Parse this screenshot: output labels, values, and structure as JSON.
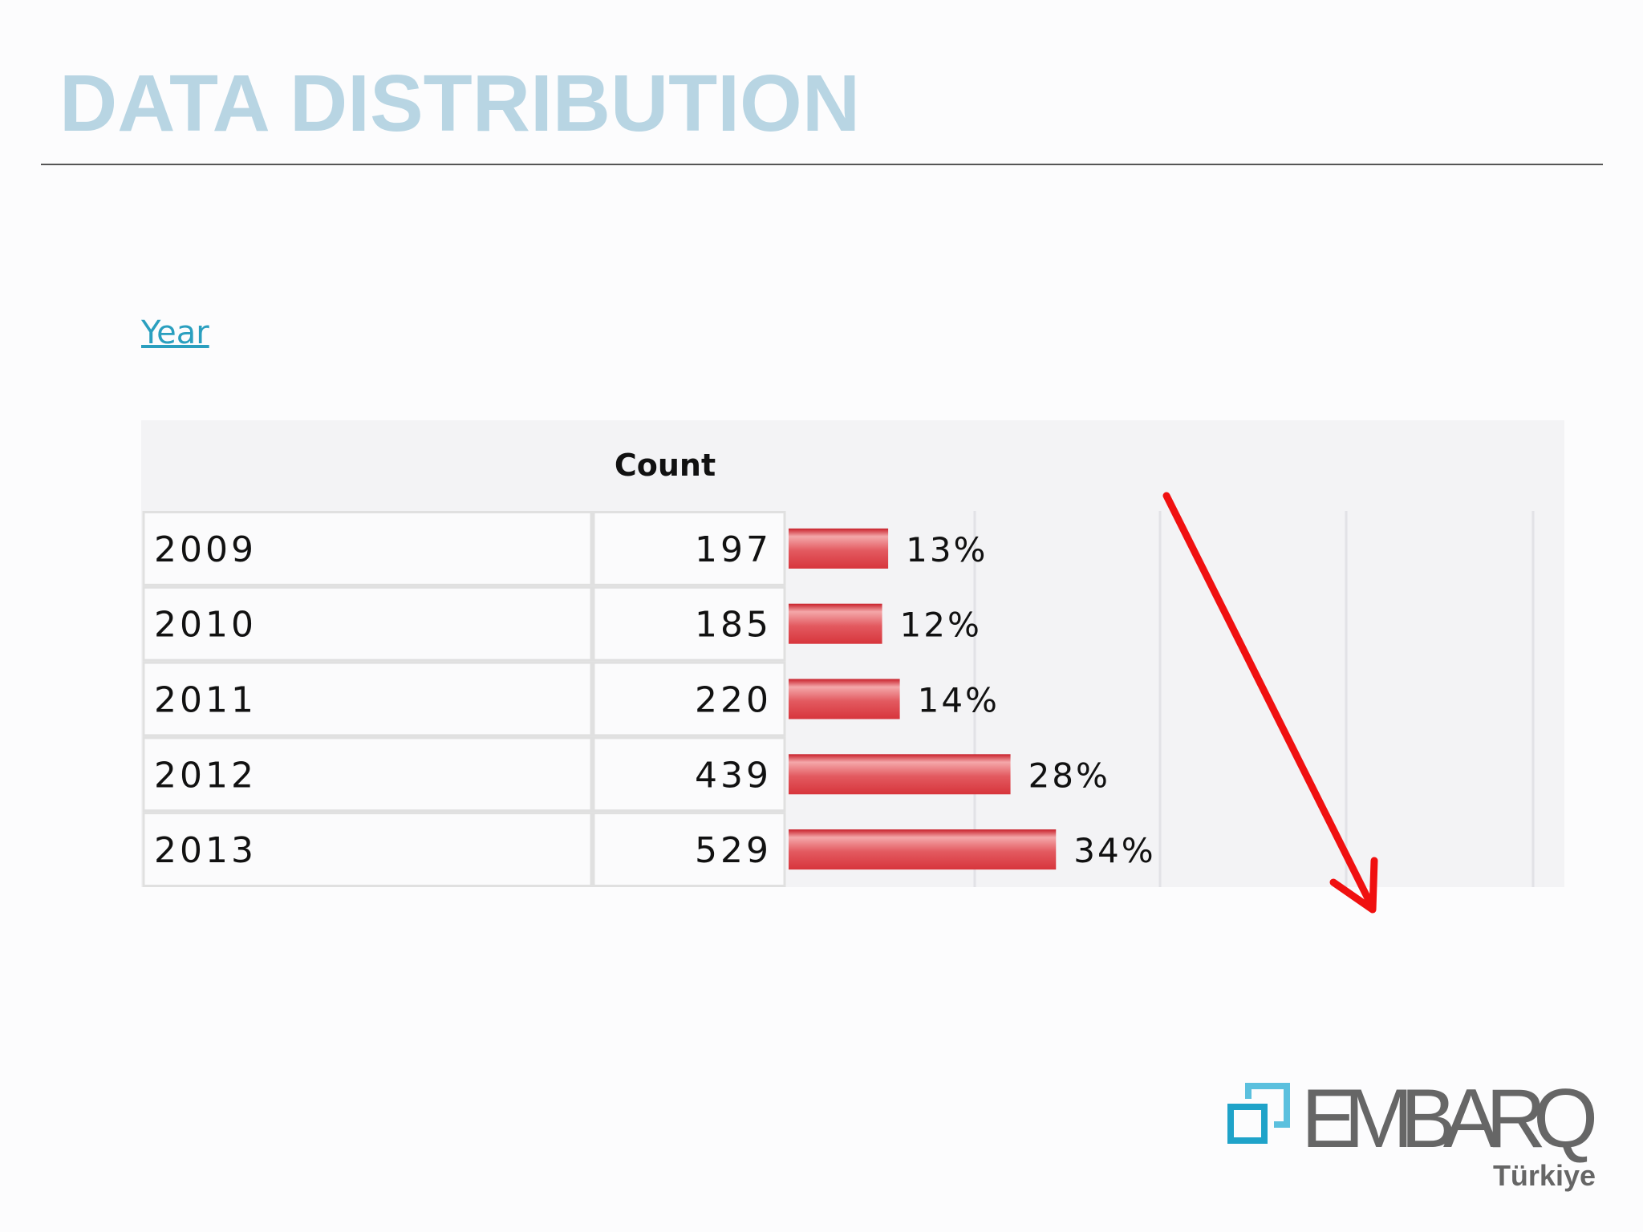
{
  "header": {
    "title": "DATA DISTRIBUTION"
  },
  "link": "Year",
  "table": {
    "header": "Count",
    "rows": [
      {
        "year": "2009",
        "count": 197,
        "percent": "13%"
      },
      {
        "year": "2010",
        "count": 185,
        "percent": "12%"
      },
      {
        "year": "2011",
        "count": 220,
        "percent": "14%"
      },
      {
        "year": "2012",
        "count": 439,
        "percent": "28%"
      },
      {
        "year": "2013",
        "count": 529,
        "percent": "34%"
      }
    ]
  },
  "logo": {
    "name": "EMBARQ",
    "region": "Türkiye"
  }
}
